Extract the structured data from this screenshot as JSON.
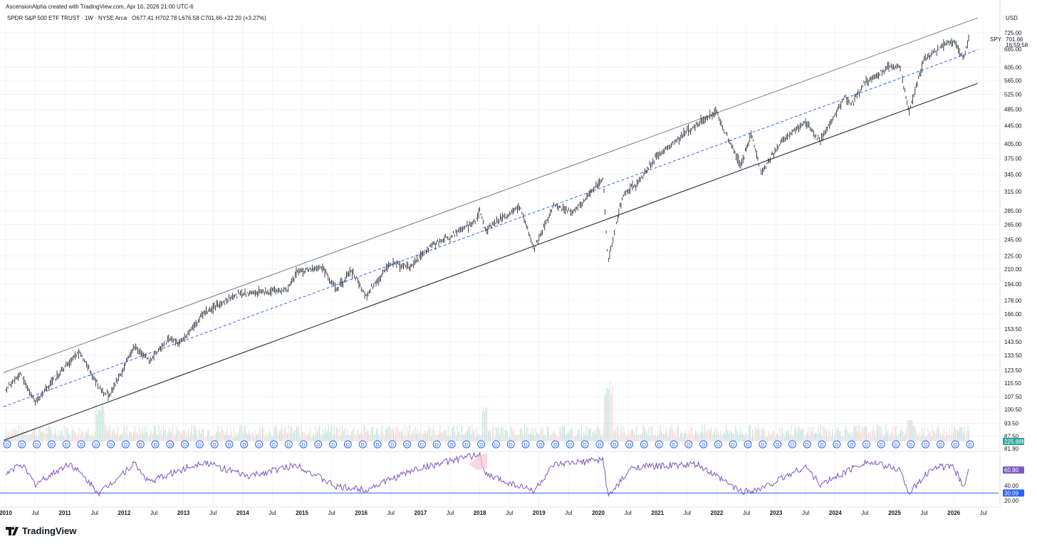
{
  "header": {
    "created_by": "AscensionAlpha created with TradingView.com, Apr 16, 2026 21:00 UTC-6",
    "symbol_line": "SPDR S&P 500 ETF TRUST · 1W · NYSE Arca",
    "ohlc": "O677.41  H702.78  L676.58  C701.66  +22.20 (+3.27%)"
  },
  "currency": "USD",
  "last_price": {
    "symbol": "SPY",
    "price": "701.66",
    "countdown": "16:59:58"
  },
  "volume_badge": "225.88M",
  "rsi_badges": {
    "value": "60.80",
    "level": "30.09"
  },
  "branding": {
    "logo_text": "TradingView"
  },
  "colors": {
    "accent_blue": "#2962ff",
    "rsi_line": "#7e57c2",
    "volume_badge_bg": "#26a69a",
    "rsi_badge_bg": "#7e57c2",
    "level_badge_bg": "#2962ff",
    "candle": "#131722",
    "channel_line": "#131722"
  },
  "chart_data": {
    "type": "line",
    "series_type": "weekly candlestick (price), log scale",
    "x_axis": {
      "labels": [
        "2010",
        "Jul",
        "2011",
        "Jul",
        "2012",
        "Jul",
        "2013",
        "Jul",
        "2014",
        "Jul",
        "2015",
        "Jul",
        "2016",
        "Jul",
        "2017",
        "Jul",
        "2018",
        "Jul",
        "2019",
        "Jul",
        "2020",
        "Jul",
        "2021",
        "Jul",
        "2022",
        "Jul",
        "2023",
        "Jul",
        "2024",
        "Jul",
        "2025",
        "Jul",
        "2026",
        "Jul"
      ]
    },
    "y_axis": {
      "scale": "log",
      "ticks": [
        "725.00",
        "665.00",
        "605.00",
        "565.00",
        "525.00",
        "485.00",
        "445.00",
        "405.00",
        "375.00",
        "345.00",
        "315.00",
        "285.00",
        "265.00",
        "245.00",
        "225.00",
        "210.00",
        "194.00",
        "178.00",
        "166.00",
        "153.50",
        "143.50",
        "133.50",
        "123.50",
        "115.50",
        "107.50",
        "100.50",
        "93.50",
        "87.50",
        "81.90"
      ]
    },
    "price_path": [
      {
        "x": "2010-01",
        "y": 112
      },
      {
        "x": "2010-04",
        "y": 121
      },
      {
        "x": "2010-07",
        "y": 104
      },
      {
        "x": "2010-11",
        "y": 119
      },
      {
        "x": "2011-04",
        "y": 136
      },
      {
        "x": "2011-08",
        "y": 112
      },
      {
        "x": "2011-10",
        "y": 108
      },
      {
        "x": "2012-03",
        "y": 140
      },
      {
        "x": "2012-06",
        "y": 130
      },
      {
        "x": "2012-10",
        "y": 146
      },
      {
        "x": "2012-12",
        "y": 142
      },
      {
        "x": "2013-05",
        "y": 166
      },
      {
        "x": "2013-12",
        "y": 184
      },
      {
        "x": "2014-04",
        "y": 186
      },
      {
        "x": "2014-10",
        "y": 188
      },
      {
        "x": "2014-12",
        "y": 207
      },
      {
        "x": "2015-05",
        "y": 212
      },
      {
        "x": "2015-08",
        "y": 188
      },
      {
        "x": "2015-11",
        "y": 209
      },
      {
        "x": "2016-02",
        "y": 182
      },
      {
        "x": "2016-07",
        "y": 217
      },
      {
        "x": "2016-11",
        "y": 212
      },
      {
        "x": "2017-03",
        "y": 237
      },
      {
        "x": "2017-12",
        "y": 268
      },
      {
        "x": "2018-01",
        "y": 287
      },
      {
        "x": "2018-02",
        "y": 257
      },
      {
        "x": "2018-09",
        "y": 292
      },
      {
        "x": "2018-12",
        "y": 234
      },
      {
        "x": "2019-04",
        "y": 293
      },
      {
        "x": "2019-08",
        "y": 283
      },
      {
        "x": "2020-02",
        "y": 337
      },
      {
        "x": "2020-03",
        "y": 219
      },
      {
        "x": "2020-06",
        "y": 310
      },
      {
        "x": "2020-09",
        "y": 330
      },
      {
        "x": "2021-01",
        "y": 380
      },
      {
        "x": "2021-09",
        "y": 450
      },
      {
        "x": "2022-01",
        "y": 479
      },
      {
        "x": "2022-03",
        "y": 420
      },
      {
        "x": "2022-06",
        "y": 362
      },
      {
        "x": "2022-08",
        "y": 430
      },
      {
        "x": "2022-10",
        "y": 348
      },
      {
        "x": "2023-02",
        "y": 410
      },
      {
        "x": "2023-07",
        "y": 455
      },
      {
        "x": "2023-10",
        "y": 410
      },
      {
        "x": "2024-03",
        "y": 520
      },
      {
        "x": "2024-04",
        "y": 495
      },
      {
        "x": "2024-07",
        "y": 560
      },
      {
        "x": "2024-12",
        "y": 605
      },
      {
        "x": "2025-02",
        "y": 610
      },
      {
        "x": "2025-04",
        "y": 481
      },
      {
        "x": "2025-07",
        "y": 630
      },
      {
        "x": "2025-10",
        "y": 672
      },
      {
        "x": "2026-01",
        "y": 695
      },
      {
        "x": "2026-03",
        "y": 634
      },
      {
        "x": "2026-04",
        "y": 702
      }
    ],
    "rsi_path": [
      {
        "x": "2010-01",
        "y": 55
      },
      {
        "x": "2010-04",
        "y": 70
      },
      {
        "x": "2010-07",
        "y": 42
      },
      {
        "x": "2011-02",
        "y": 70
      },
      {
        "x": "2011-08",
        "y": 30
      },
      {
        "x": "2012-03",
        "y": 70
      },
      {
        "x": "2012-06",
        "y": 45
      },
      {
        "x": "2013-05",
        "y": 72
      },
      {
        "x": "2014-02",
        "y": 52
      },
      {
        "x": "2014-12",
        "y": 68
      },
      {
        "x": "2015-08",
        "y": 38
      },
      {
        "x": "2016-02",
        "y": 35
      },
      {
        "x": "2016-12",
        "y": 62
      },
      {
        "x": "2018-01",
        "y": 82
      },
      {
        "x": "2018-02",
        "y": 55
      },
      {
        "x": "2018-12",
        "y": 33
      },
      {
        "x": "2019-04",
        "y": 67
      },
      {
        "x": "2020-02",
        "y": 75
      },
      {
        "x": "2020-03",
        "y": 25
      },
      {
        "x": "2020-08",
        "y": 65
      },
      {
        "x": "2021-09",
        "y": 68
      },
      {
        "x": "2022-06",
        "y": 32
      },
      {
        "x": "2022-10",
        "y": 36
      },
      {
        "x": "2023-07",
        "y": 66
      },
      {
        "x": "2023-10",
        "y": 41
      },
      {
        "x": "2024-07",
        "y": 72
      },
      {
        "x": "2025-02",
        "y": 62
      },
      {
        "x": "2025-04",
        "y": 30
      },
      {
        "x": "2025-09",
        "y": 66
      },
      {
        "x": "2026-01",
        "y": 64
      },
      {
        "x": "2026-03",
        "y": 38
      },
      {
        "x": "2026-04",
        "y": 60.8
      }
    ],
    "rsi_axis_ticks": [
      "40.00",
      "20.00"
    ],
    "channel": {
      "upper": [
        {
          "x": "2010-01",
          "y": 122
        },
        {
          "x": "2026-07",
          "y": 784
        }
      ],
      "mid": [
        {
          "x": "2010-01",
          "y": 102
        },
        {
          "x": "2026-07",
          "y": 663
        }
      ],
      "lower": [
        {
          "x": "2010-01",
          "y": 85.5
        },
        {
          "x": "2026-07",
          "y": 556
        }
      ]
    },
    "grid": true,
    "dividend_markers": "D"
  }
}
